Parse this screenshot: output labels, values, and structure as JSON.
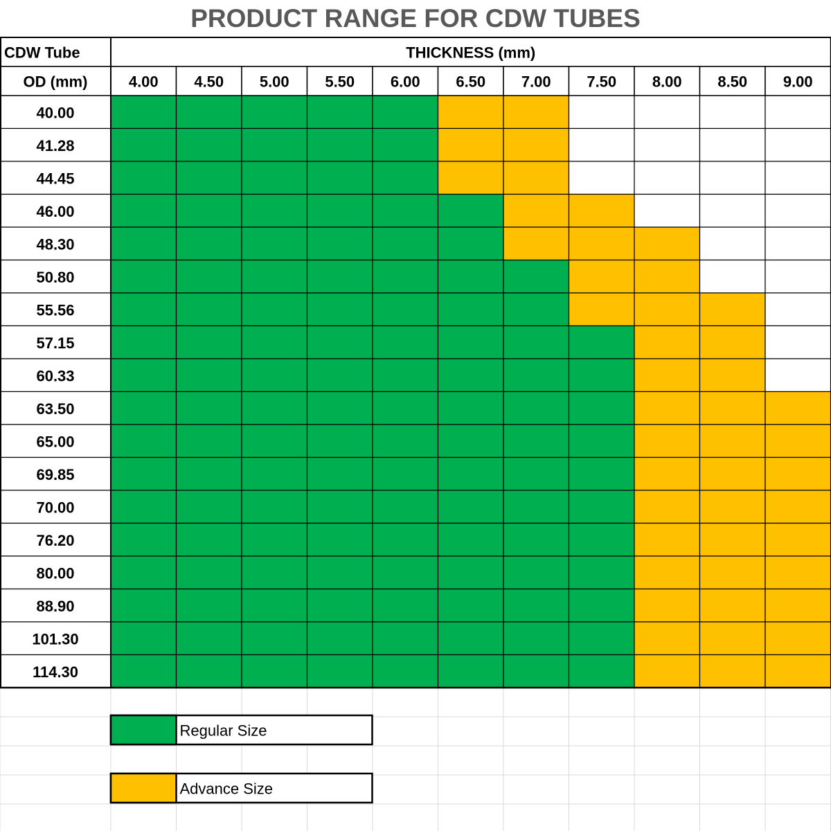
{
  "title": "PRODUCT RANGE FOR CDW TUBES",
  "colors": {
    "regular": "#00B050",
    "advance": "#FFC000",
    "none": "#FFFFFF",
    "grid": "#000000",
    "empty_grid": "#D9D9D9",
    "title": "#595959"
  },
  "chart_data": {
    "type": "table",
    "title": "PRODUCT RANGE FOR CDW TUBES",
    "corner_label_top": "CDW Tube",
    "corner_label_bottom": "OD (mm)",
    "column_group_label": "THICKNESS (mm)",
    "columns": [
      "4.00",
      "4.50",
      "5.00",
      "5.50",
      "6.00",
      "6.50",
      "7.00",
      "7.50",
      "8.00",
      "8.50",
      "9.00"
    ],
    "rows": [
      {
        "od": "40.00",
        "cells": [
          "R",
          "R",
          "R",
          "R",
          "R",
          "A",
          "A",
          "-",
          "-",
          "-",
          "-"
        ]
      },
      {
        "od": "41.28",
        "cells": [
          "R",
          "R",
          "R",
          "R",
          "R",
          "A",
          "A",
          "-",
          "-",
          "-",
          "-"
        ]
      },
      {
        "od": "44.45",
        "cells": [
          "R",
          "R",
          "R",
          "R",
          "R",
          "A",
          "A",
          "-",
          "-",
          "-",
          "-"
        ]
      },
      {
        "od": "46.00",
        "cells": [
          "R",
          "R",
          "R",
          "R",
          "R",
          "R",
          "A",
          "A",
          "-",
          "-",
          "-"
        ]
      },
      {
        "od": "48.30",
        "cells": [
          "R",
          "R",
          "R",
          "R",
          "R",
          "R",
          "A",
          "A",
          "A",
          "-",
          "-"
        ]
      },
      {
        "od": "50.80",
        "cells": [
          "R",
          "R",
          "R",
          "R",
          "R",
          "R",
          "R",
          "A",
          "A",
          "-",
          "-"
        ]
      },
      {
        "od": "55.56",
        "cells": [
          "R",
          "R",
          "R",
          "R",
          "R",
          "R",
          "R",
          "A",
          "A",
          "A",
          "-"
        ]
      },
      {
        "od": "57.15",
        "cells": [
          "R",
          "R",
          "R",
          "R",
          "R",
          "R",
          "R",
          "R",
          "A",
          "A",
          "-"
        ]
      },
      {
        "od": "60.33",
        "cells": [
          "R",
          "R",
          "R",
          "R",
          "R",
          "R",
          "R",
          "R",
          "A",
          "A",
          "-"
        ]
      },
      {
        "od": "63.50",
        "cells": [
          "R",
          "R",
          "R",
          "R",
          "R",
          "R",
          "R",
          "R",
          "A",
          "A",
          "A"
        ]
      },
      {
        "od": "65.00",
        "cells": [
          "R",
          "R",
          "R",
          "R",
          "R",
          "R",
          "R",
          "R",
          "A",
          "A",
          "A"
        ]
      },
      {
        "od": "69.85",
        "cells": [
          "R",
          "R",
          "R",
          "R",
          "R",
          "R",
          "R",
          "R",
          "A",
          "A",
          "A"
        ]
      },
      {
        "od": "70.00",
        "cells": [
          "R",
          "R",
          "R",
          "R",
          "R",
          "R",
          "R",
          "R",
          "A",
          "A",
          "A"
        ]
      },
      {
        "od": "76.20",
        "cells": [
          "R",
          "R",
          "R",
          "R",
          "R",
          "R",
          "R",
          "R",
          "A",
          "A",
          "A"
        ]
      },
      {
        "od": "80.00",
        "cells": [
          "R",
          "R",
          "R",
          "R",
          "R",
          "R",
          "R",
          "R",
          "A",
          "A",
          "A"
        ]
      },
      {
        "od": "88.90",
        "cells": [
          "R",
          "R",
          "R",
          "R",
          "R",
          "R",
          "R",
          "R",
          "A",
          "A",
          "A"
        ]
      },
      {
        "od": "101.30",
        "cells": [
          "R",
          "R",
          "R",
          "R",
          "R",
          "R",
          "R",
          "R",
          "A",
          "A",
          "A"
        ]
      },
      {
        "od": "114.30",
        "cells": [
          "R",
          "R",
          "R",
          "R",
          "R",
          "R",
          "R",
          "R",
          "A",
          "A",
          "A"
        ]
      }
    ],
    "legend": [
      {
        "key": "R",
        "label": "Regular Size"
      },
      {
        "key": "A",
        "label": "Advance  Size"
      }
    ]
  }
}
